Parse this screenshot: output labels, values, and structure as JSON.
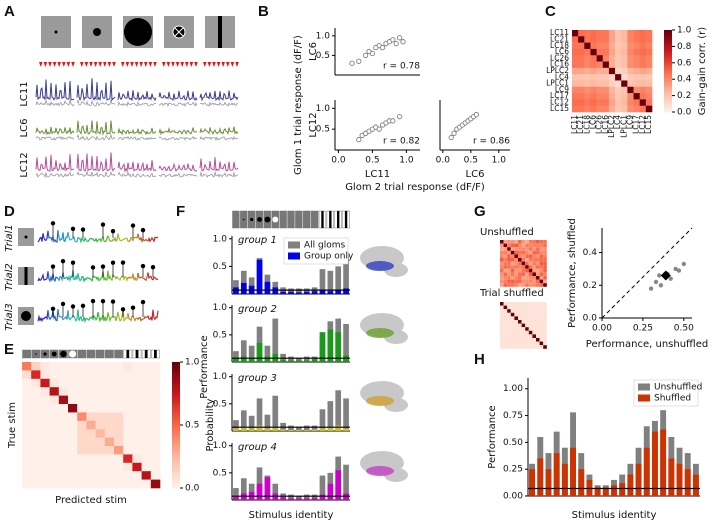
{
  "panel_labels": [
    "A",
    "B",
    "C",
    "D",
    "E",
    "F",
    "G",
    "H"
  ],
  "figure_a": {
    "rows": [
      "LC11",
      "LC6",
      "LC12"
    ]
  },
  "figure_b": {
    "y_label": "Glom 1 trial response (dF/F)",
    "x_label": "Glom 2 trial response (dF/F)"
  },
  "figure_d": {
    "trials": [
      "Trial1",
      "Trial2",
      "Trial3"
    ]
  },
  "figure_f": {
    "y_label": "Performance",
    "x_label": "Stimulus identity"
  },
  "figure_g": {
    "labels": [
      "Unshuffled",
      "Trial shuffled"
    ]
  },
  "chart_data": [
    {
      "type": "scatter",
      "y_label": "LC6",
      "annotation": "r = 0.78",
      "color": "#808080",
      "x": [
        0.3,
        0.4,
        0.45,
        0.5,
        0.55,
        0.6,
        0.65,
        0.7,
        0.75,
        0.8,
        0.85,
        0.9,
        0.95,
        0.2
      ],
      "y": [
        0.35,
        0.5,
        0.6,
        0.55,
        0.7,
        0.75,
        0.7,
        0.8,
        0.85,
        0.9,
        0.8,
        0.95,
        0.85,
        0.3
      ],
      "xlim": [
        -0.05,
        1.2
      ],
      "ylim": [
        0,
        1.2
      ],
      "yticks": [
        0.5,
        {
          "value": 1,
          "label": "1.0"
        }
      ]
    },
    {
      "type": "scatter",
      "y_label": "LC12",
      "x_label": "LC11",
      "annotation": "r = 0.82",
      "color": "#808080",
      "x": [
        0.3,
        0.35,
        0.4,
        0.45,
        0.5,
        0.55,
        0.6,
        0.65,
        0.7,
        0.75,
        0.8,
        0.9
      ],
      "y": [
        0.25,
        0.35,
        0.4,
        0.45,
        0.5,
        0.55,
        0.5,
        0.6,
        0.65,
        0.7,
        0.7,
        0.8
      ],
      "xlim": [
        -0.05,
        1.2
      ],
      "ylim": [
        0,
        1.2
      ],
      "yticks": [
        0.5,
        {
          "value": 1,
          "label": "1.0"
        }
      ],
      "xticks": [
        {
          "value": 0,
          "label": "0.0"
        },
        0.5,
        {
          "value": 1,
          "label": "1.0"
        }
      ]
    },
    {
      "type": "scatter",
      "x_label": "LC6",
      "annotation": "r = 0.86",
      "color": "#808080",
      "x": [
        0.15,
        0.2,
        0.25,
        0.3,
        0.35,
        0.4,
        0.45,
        0.5,
        0.55,
        0.6
      ],
      "y": [
        0.3,
        0.4,
        0.5,
        0.55,
        0.6,
        0.65,
        0.7,
        0.75,
        0.8,
        0.85
      ],
      "xlim": [
        -0.05,
        1.2
      ],
      "ylim": [
        0,
        1.2
      ],
      "xticks": [
        {
          "value": 0,
          "label": "0.0"
        },
        0.5,
        {
          "value": 1,
          "label": "1.0"
        }
      ]
    },
    {
      "type": "heatmap",
      "categories": [
        "LC11",
        "LC21",
        "LC18",
        "LC6",
        "LC26",
        "LC16",
        "LPLC2",
        "LC4",
        "LPLC1",
        "LC9",
        "LC17",
        "LC12",
        "LC15"
      ],
      "colorbar_label": "Gain-gain corr. (r)",
      "zlim": [
        0,
        1
      ],
      "zticks": [
        {
          "value": 0,
          "label": "0.0"
        },
        0.2,
        0.4,
        0.6,
        0.8,
        {
          "value": 1,
          "label": "1.0"
        }
      ],
      "matrix": [
        [
          1,
          0.49,
          0.46,
          0.49,
          0.46,
          0.46,
          0.32,
          0.21,
          0.25,
          0.42,
          0.46,
          0.49,
          0.46
        ],
        [
          0.49,
          1,
          0.46,
          0.49,
          0.46,
          0.46,
          0.32,
          0.21,
          0.25,
          0.42,
          0.46,
          0.49,
          0.46
        ],
        [
          0.46,
          0.46,
          1,
          0.46,
          0.42,
          0.42,
          0.29,
          0.2,
          0.23,
          0.39,
          0.42,
          0.46,
          0.42
        ],
        [
          0.49,
          0.49,
          0.46,
          1,
          0.46,
          0.46,
          0.32,
          0.21,
          0.25,
          0.42,
          0.46,
          0.49,
          0.46
        ],
        [
          0.46,
          0.46,
          0.42,
          0.46,
          1,
          0.42,
          0.29,
          0.2,
          0.23,
          0.39,
          0.42,
          0.46,
          0.42
        ],
        [
          0.46,
          0.46,
          0.42,
          0.46,
          0.42,
          1,
          0.29,
          0.2,
          0.23,
          0.39,
          0.42,
          0.46,
          0.42
        ],
        [
          0.32,
          0.32,
          0.29,
          0.32,
          0.29,
          0.29,
          1,
          0.14,
          0.16,
          0.27,
          0.29,
          0.32,
          0.29
        ],
        [
          0.21,
          0.21,
          0.2,
          0.21,
          0.2,
          0.2,
          0.14,
          1,
          0.11,
          0.18,
          0.2,
          0.21,
          0.2
        ],
        [
          0.25,
          0.25,
          0.23,
          0.25,
          0.23,
          0.23,
          0.16,
          0.11,
          1,
          0.21,
          0.23,
          0.25,
          0.23
        ],
        [
          0.42,
          0.42,
          0.39,
          0.42,
          0.39,
          0.39,
          0.27,
          0.18,
          0.21,
          1,
          0.39,
          0.42,
          0.39
        ],
        [
          0.46,
          0.46,
          0.42,
          0.46,
          0.42,
          0.42,
          0.29,
          0.2,
          0.23,
          0.39,
          1,
          0.46,
          0.42
        ],
        [
          0.49,
          0.49,
          0.46,
          0.49,
          0.46,
          0.46,
          0.32,
          0.21,
          0.25,
          0.42,
          0.46,
          1,
          0.46
        ],
        [
          0.46,
          0.46,
          0.42,
          0.46,
          0.42,
          0.42,
          0.29,
          0.2,
          0.23,
          0.39,
          0.42,
          0.46,
          1
        ]
      ]
    },
    {
      "type": "heatmap",
      "x_label": "Predicted stim",
      "y_label": "True stim",
      "colorbar_label": "Probability",
      "zlim": [
        0,
        1
      ],
      "zticks": [
        {
          "value": 0,
          "label": "0.0"
        },
        0.5,
        {
          "value": 1,
          "label": "1.0"
        }
      ],
      "matrix": [
        [
          0.45,
          0.15,
          0.05,
          0.02,
          0.02,
          0.02,
          0.02,
          0.02,
          0.02,
          0.02,
          0.02,
          0.05,
          0.02,
          0.02,
          0.02
        ],
        [
          0.1,
          0.7,
          0.05,
          0.02,
          0.02,
          0.02,
          0.02,
          0.02,
          0.02,
          0.02,
          0.02,
          0.02,
          0.02,
          0.02,
          0.02
        ],
        [
          0.02,
          0.05,
          0.75,
          0.05,
          0.02,
          0.02,
          0.02,
          0.02,
          0.02,
          0.02,
          0.02,
          0.02,
          0.02,
          0.02,
          0.02
        ],
        [
          0.02,
          0.02,
          0.05,
          0.8,
          0.05,
          0.02,
          0.02,
          0.02,
          0.02,
          0.02,
          0.02,
          0.02,
          0.02,
          0.02,
          0.02
        ],
        [
          0.02,
          0.02,
          0.02,
          0.05,
          0.85,
          0.02,
          0.02,
          0.02,
          0.02,
          0.02,
          0.02,
          0.02,
          0.02,
          0.02,
          0.02
        ],
        [
          0.02,
          0.02,
          0.02,
          0.02,
          0.02,
          0.9,
          0.02,
          0.02,
          0.02,
          0.02,
          0.02,
          0.02,
          0.02,
          0.02,
          0.02
        ],
        [
          0.02,
          0.02,
          0.02,
          0.02,
          0.02,
          0.02,
          0.4,
          0.12,
          0.12,
          0.12,
          0.12,
          0.02,
          0.02,
          0.02,
          0.02
        ],
        [
          0.02,
          0.02,
          0.02,
          0.02,
          0.02,
          0.02,
          0.12,
          0.3,
          0.12,
          0.12,
          0.12,
          0.02,
          0.02,
          0.02,
          0.02
        ],
        [
          0.02,
          0.02,
          0.02,
          0.02,
          0.02,
          0.02,
          0.12,
          0.12,
          0.25,
          0.12,
          0.12,
          0.02,
          0.02,
          0.02,
          0.02
        ],
        [
          0.02,
          0.02,
          0.02,
          0.02,
          0.02,
          0.02,
          0.12,
          0.12,
          0.12,
          0.3,
          0.12,
          0.02,
          0.02,
          0.02,
          0.02
        ],
        [
          0.02,
          0.02,
          0.02,
          0.02,
          0.02,
          0.02,
          0.12,
          0.12,
          0.12,
          0.12,
          0.35,
          0.02,
          0.02,
          0.02,
          0.02
        ],
        [
          0.02,
          0.02,
          0.02,
          0.02,
          0.02,
          0.02,
          0.02,
          0.02,
          0.02,
          0.02,
          0.02,
          0.7,
          0.05,
          0.02,
          0.02
        ],
        [
          0.02,
          0.02,
          0.02,
          0.02,
          0.02,
          0.02,
          0.02,
          0.02,
          0.02,
          0.02,
          0.02,
          0.05,
          0.75,
          0.02,
          0.02
        ],
        [
          0.02,
          0.02,
          0.02,
          0.02,
          0.02,
          0.02,
          0.02,
          0.02,
          0.02,
          0.02,
          0.02,
          0.02,
          0.02,
          0.8,
          0.02
        ],
        [
          0.02,
          0.02,
          0.02,
          0.02,
          0.02,
          0.02,
          0.02,
          0.02,
          0.02,
          0.02,
          0.02,
          0.02,
          0.02,
          0.02,
          0.9
        ]
      ]
    },
    {
      "type": "bar",
      "title": "group 1",
      "legend": "upper right",
      "ylim": [
        0,
        1.05
      ],
      "yticks": [
        0.5,
        {
          "value": 1,
          "label": "1.0"
        }
      ],
      "reference_line": 0.07,
      "series": [
        {
          "name": "All gloms",
          "color": "#808080",
          "values": [
            0.25,
            0.42,
            0.3,
            0.65,
            0.35,
            0.22,
            0.12,
            0.1,
            0.1,
            0.1,
            0.12,
            0.45,
            0.42,
            0.5,
            0.7
          ]
        },
        {
          "name": "Group only",
          "color": "#0000ee",
          "values": [
            0.12,
            0.2,
            0.15,
            0.62,
            0.22,
            0.12,
            0.04,
            0.04,
            0.03,
            0.04,
            0.05,
            0.06,
            0.05,
            0.08,
            0.1
          ]
        }
      ]
    },
    {
      "type": "bar",
      "title": "group 2",
      "ylim": [
        0,
        1.05
      ],
      "yticks": [
        0.5,
        {
          "value": 1,
          "label": "1.0"
        }
      ],
      "reference_line": 0.07,
      "series": [
        {
          "color": "#808080",
          "values": [
            0.2,
            0.4,
            0.3,
            0.65,
            0.3,
            0.8,
            0.15,
            0.1,
            0.08,
            0.1,
            0.1,
            0.45,
            0.75,
            0.8,
            0.7
          ]
        },
        {
          "color": "#1a9a1a",
          "values": [
            0.08,
            0.1,
            0.08,
            0.35,
            0.1,
            0.15,
            0.04,
            0.03,
            0.03,
            0.03,
            0.05,
            0.55,
            0.6,
            0.55,
            0.12
          ]
        }
      ]
    },
    {
      "type": "bar",
      "title": "group 3",
      "ylim": [
        0,
        1.05
      ],
      "yticks": [
        0.5,
        {
          "value": 1,
          "label": "1.0"
        }
      ],
      "reference_line": 0.07,
      "series": [
        {
          "color": "#808080",
          "values": [
            0.2,
            0.38,
            0.28,
            0.6,
            0.3,
            0.65,
            0.15,
            0.1,
            0.08,
            0.1,
            0.1,
            0.4,
            0.55,
            0.75,
            0.6
          ]
        },
        {
          "color": "#c8c020",
          "values": [
            0.05,
            0.08,
            0.05,
            0.1,
            0.05,
            0.06,
            0.03,
            0.02,
            0.02,
            0.02,
            0.03,
            0.05,
            0.08,
            0.1,
            0.05
          ]
        }
      ]
    },
    {
      "type": "bar",
      "title": "group 4",
      "ylim": [
        0,
        1.05
      ],
      "yticks": [
        0.5,
        {
          "value": 1,
          "label": "1.0"
        }
      ],
      "reference_line": 0.07,
      "series": [
        {
          "color": "#808080",
          "values": [
            0.22,
            0.4,
            0.3,
            0.6,
            0.45,
            0.3,
            0.12,
            0.1,
            0.08,
            0.1,
            0.1,
            0.45,
            0.5,
            0.8,
            0.65
          ]
        },
        {
          "color": "#cc00cc",
          "values": [
            0.05,
            0.12,
            0.15,
            0.3,
            0.42,
            0.12,
            0.05,
            0.03,
            0.03,
            0.03,
            0.04,
            0.1,
            0.3,
            0.55,
            0.12
          ]
        }
      ]
    },
    {
      "type": "scatter",
      "x_label": "Performance, unshuffled",
      "y_label": "Performance, shuffled",
      "diagonal": true,
      "xlim": [
        0,
        0.55
      ],
      "ylim": [
        0,
        0.55
      ],
      "xticks": [
        {
          "value": 0,
          "label": "0.00"
        },
        {
          "value": 0.25,
          "label": "0.25"
        },
        {
          "value": 0.5,
          "label": "0.50"
        }
      ],
      "yticks": [
        {
          "value": 0,
          "label": "0.0"
        },
        {
          "value": 0.2,
          "label": "0.2"
        },
        {
          "value": 0.4,
          "label": "0.4"
        }
      ],
      "series": [
        {
          "color": "#888888",
          "x": [
            0.3,
            0.33,
            0.36,
            0.4,
            0.42,
            0.45,
            0.47,
            0.5,
            0.35
          ],
          "y": [
            0.18,
            0.22,
            0.2,
            0.27,
            0.24,
            0.3,
            0.29,
            0.33,
            0.26
          ]
        },
        {
          "color": "#000000",
          "marker": "diamond",
          "x": [
            0.39
          ],
          "y": [
            0.26
          ]
        }
      ]
    },
    {
      "type": "bar",
      "y_label": "Performance",
      "x_label": "Stimulus identity",
      "legend": "upper right",
      "ylim": [
        0,
        1.1
      ],
      "reference_line": 0.07,
      "yticks": [
        {
          "value": 0,
          "label": "0.00"
        },
        {
          "value": 0.25,
          "label": "0.25"
        },
        {
          "value": 0.5,
          "label": "0.50"
        },
        {
          "value": 0.75,
          "label": "0.75"
        },
        {
          "value": 1,
          "label": "1.00"
        }
      ],
      "series": [
        {
          "name": "Unshuffled",
          "color": "#808080",
          "values": [
            0.3,
            0.55,
            0.4,
            0.6,
            0.45,
            0.78,
            0.4,
            0.2,
            0.1,
            0.1,
            0.15,
            0.2,
            0.3,
            0.45,
            0.65,
            0.7,
            0.8,
            0.55,
            0.45,
            0.4,
            0.3
          ]
        },
        {
          "name": "Shuffled",
          "color": "#cc3300",
          "values": [
            0.25,
            0.35,
            0.25,
            0.4,
            0.3,
            0.45,
            0.25,
            0.15,
            0.08,
            0.08,
            0.1,
            0.12,
            0.2,
            0.3,
            0.45,
            0.6,
            0.62,
            0.35,
            0.3,
            0.25,
            0.2
          ]
        }
      ]
    }
  ]
}
